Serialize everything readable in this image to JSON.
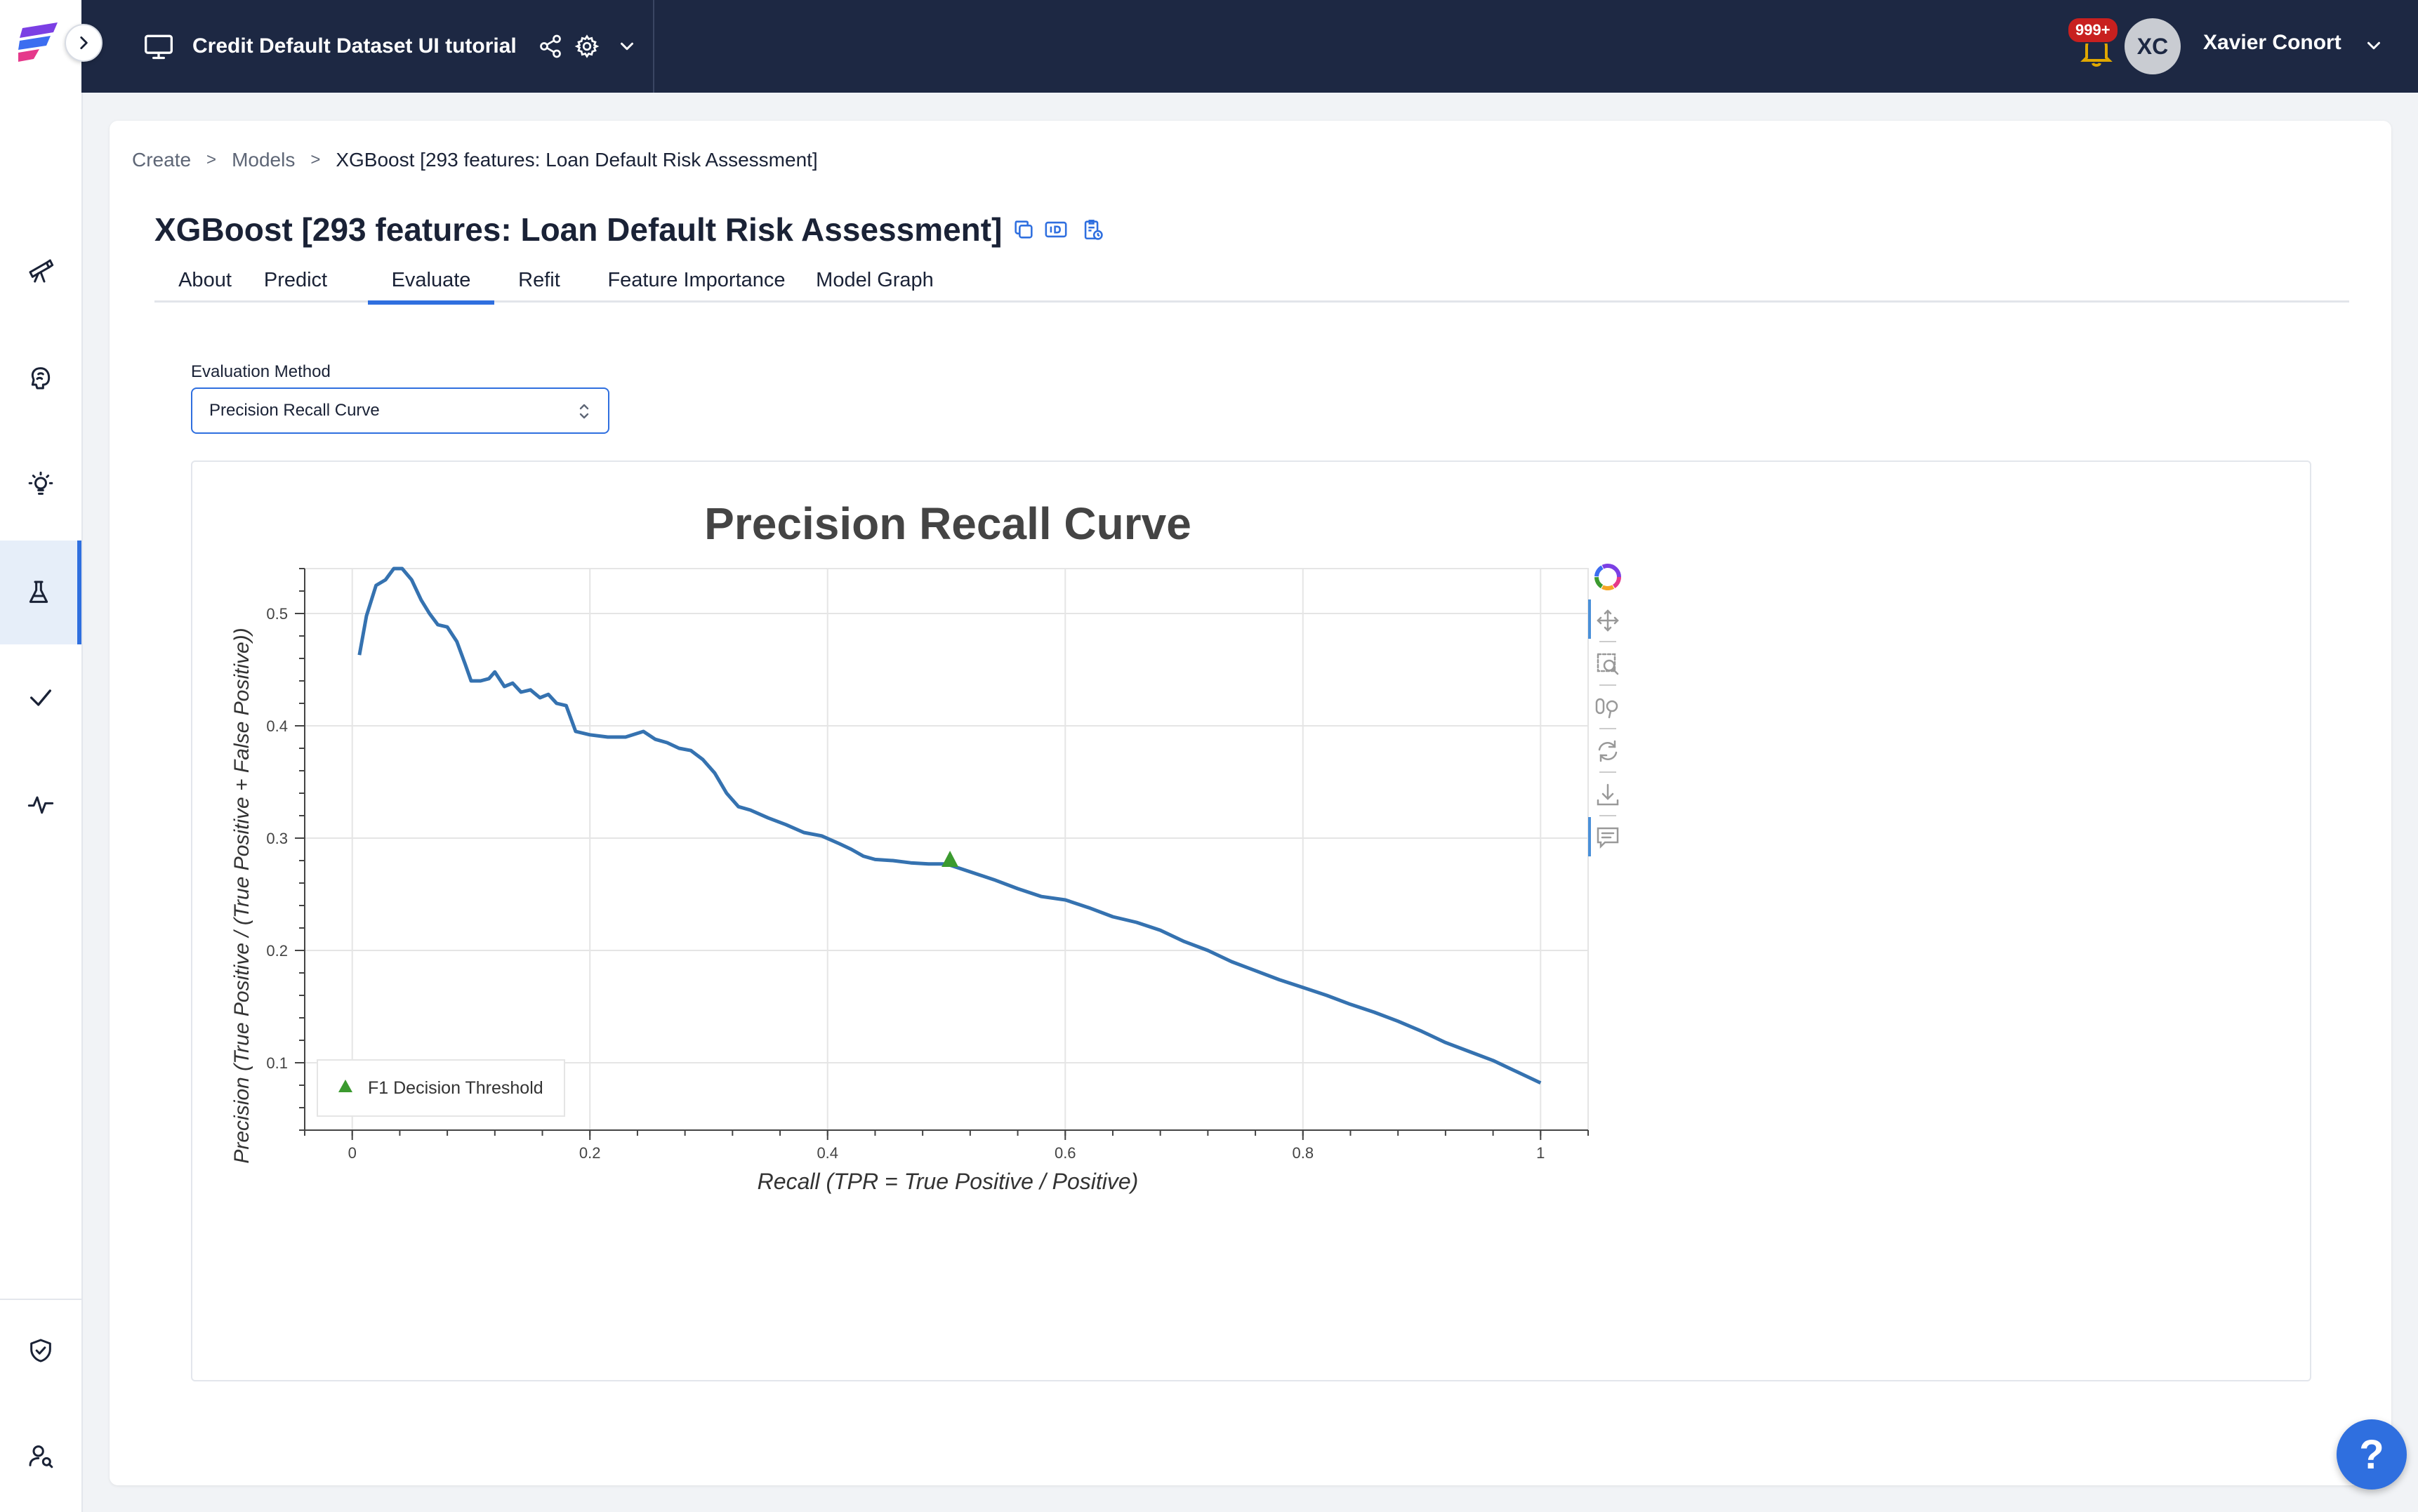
{
  "app": {
    "project_title": "Credit Default Dataset UI tutorial",
    "notification_count": "999+",
    "user": {
      "initials": "XC",
      "name": "Xavier Conort"
    }
  },
  "sidebar": {
    "items": [
      {
        "icon": "telescope-icon",
        "active": false
      },
      {
        "icon": "brain-icon",
        "active": false
      },
      {
        "icon": "lightbulb-icon",
        "active": false
      },
      {
        "icon": "flask-icon",
        "active": true
      },
      {
        "icon": "checkmark-icon",
        "active": false
      },
      {
        "icon": "activity-pulse-icon",
        "active": false
      },
      {
        "icon": "shield-icon",
        "active": false
      },
      {
        "icon": "user-search-icon",
        "active": false
      }
    ]
  },
  "breadcrumb": {
    "items": [
      "Create",
      "Models",
      "XGBoost [293 features: Loan Default Risk Assessment]"
    ],
    "separator": ">"
  },
  "model": {
    "title": "XGBoost [293 features: Loan Default Risk Assessment]"
  },
  "tabs": [
    {
      "label": "About"
    },
    {
      "label": "Predict"
    },
    {
      "label": "Evaluate",
      "active": true
    },
    {
      "label": "Refit"
    },
    {
      "label": "Feature Importance"
    },
    {
      "label": "Model Graph"
    }
  ],
  "evaluation": {
    "label": "Evaluation Method",
    "selected": "Precision Recall Curve"
  },
  "colors": {
    "accent": "#2f6fdf",
    "topbar": "#1d2843",
    "curve": "#3572b0",
    "marker": "#3b9a2f"
  },
  "chart_data": {
    "type": "line",
    "title": "Precision Recall Curve",
    "xlabel": "Recall (TPR = True Positive / Positive)",
    "ylabel": "Precision (True Positive / (True Positive + False Positive))",
    "xlim": [
      -0.04,
      1.04
    ],
    "ylim": [
      0.04,
      0.54
    ],
    "xticks": [
      0,
      0.2,
      0.4,
      0.6,
      0.8,
      1
    ],
    "yticks": [
      0.1,
      0.2,
      0.3,
      0.4,
      0.5
    ],
    "grid": true,
    "legend": {
      "position": "bottom-left",
      "entries": [
        "F1 Decision Threshold"
      ]
    },
    "series": [
      {
        "x": [
          0.006,
          0.012,
          0.02,
          0.028,
          0.035,
          0.042,
          0.05,
          0.058,
          0.065,
          0.072,
          0.08,
          0.088,
          0.095,
          0.1,
          0.108,
          0.115,
          0.12,
          0.128,
          0.135,
          0.142,
          0.15,
          0.158,
          0.165,
          0.172,
          0.18,
          0.188,
          0.2,
          0.215,
          0.23,
          0.245,
          0.255,
          0.265,
          0.275,
          0.285,
          0.295,
          0.305,
          0.315,
          0.325,
          0.335,
          0.35,
          0.365,
          0.38,
          0.395,
          0.41,
          0.42,
          0.43,
          0.44,
          0.455,
          0.47,
          0.485,
          0.5,
          0.52,
          0.54,
          0.56,
          0.58,
          0.6,
          0.62,
          0.64,
          0.66,
          0.68,
          0.7,
          0.72,
          0.74,
          0.76,
          0.78,
          0.8,
          0.82,
          0.84,
          0.86,
          0.88,
          0.9,
          0.92,
          0.94,
          0.96,
          0.98,
          1.0
        ],
        "y": [
          0.463,
          0.498,
          0.525,
          0.53,
          0.54,
          0.54,
          0.53,
          0.512,
          0.5,
          0.49,
          0.488,
          0.475,
          0.455,
          0.44,
          0.44,
          0.442,
          0.448,
          0.435,
          0.438,
          0.43,
          0.432,
          0.425,
          0.428,
          0.42,
          0.418,
          0.395,
          0.392,
          0.39,
          0.39,
          0.395,
          0.388,
          0.385,
          0.38,
          0.378,
          0.37,
          0.358,
          0.34,
          0.328,
          0.325,
          0.318,
          0.312,
          0.305,
          0.302,
          0.295,
          0.29,
          0.284,
          0.281,
          0.28,
          0.278,
          0.277,
          0.277,
          0.27,
          0.263,
          0.255,
          0.248,
          0.245,
          0.238,
          0.23,
          0.225,
          0.218,
          0.208,
          0.2,
          0.19,
          0.182,
          0.174,
          0.167,
          0.16,
          0.152,
          0.145,
          0.137,
          0.128,
          0.118,
          0.11,
          0.102,
          0.092,
          0.082
        ]
      }
    ],
    "marker": {
      "name": "F1 Decision Threshold",
      "x": 0.503,
      "y": 0.28
    }
  }
}
